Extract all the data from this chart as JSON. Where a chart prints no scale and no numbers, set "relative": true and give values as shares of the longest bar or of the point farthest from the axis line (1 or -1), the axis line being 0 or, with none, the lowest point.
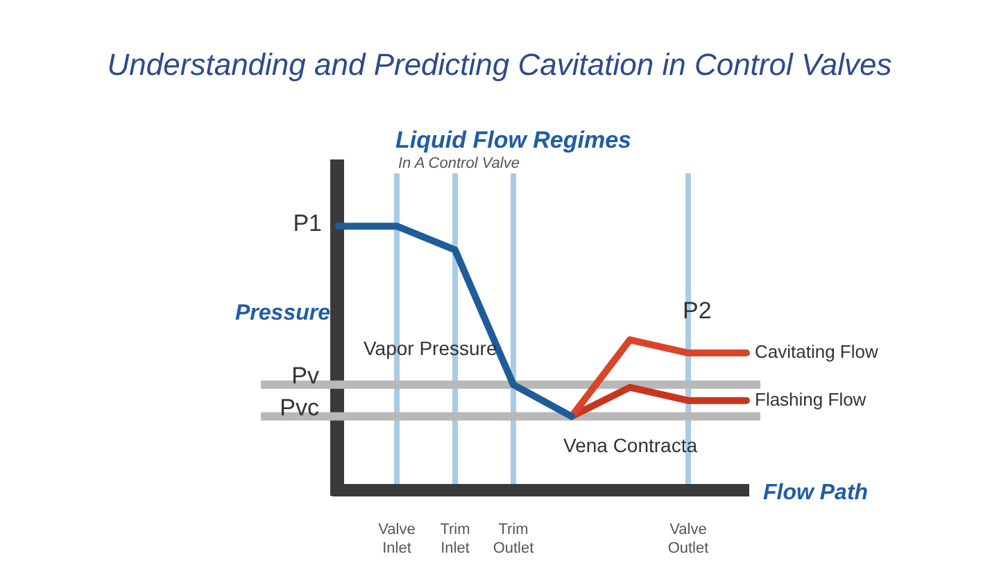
{
  "chart_data": {
    "type": "line",
    "relative": true,
    "title": "Understanding and Predicting Cavitation in Control Valves",
    "subtitle": "Liquid Flow Regimes",
    "xlabel": "Flow Path",
    "ylabel": "Pressure",
    "categories": [
      null,
      "Valve Inlet",
      "Trim Inlet",
      "Trim Outlet",
      null,
      null,
      "Valve Outlet",
      null
    ],
    "grid": "x",
    "marker": "none",
    "line_style": "solid",
    "series": [
      {
        "color": "#1f5c99",
        "values": [
          1,
          1,
          0.91,
          0.4,
          0.28,
          null,
          null,
          null
        ]
      },
      {
        "name": "Cavitating Flow",
        "color": "#d9452b",
        "values": [
          null,
          null,
          null,
          null,
          0.28,
          0.57,
          0.52,
          0.52
        ]
      },
      {
        "name": "Flashing Flow",
        "color": "#c7361f",
        "values": [
          null,
          null,
          null,
          null,
          0.28,
          0.39,
          0.34,
          0.34
        ]
      }
    ],
    "ref_lines": [
      {
        "axis": "y",
        "value": 0.4,
        "label": "Pv",
        "color": "#b8b8b8"
      },
      {
        "axis": "y",
        "value": 0.28,
        "label": "Pvc",
        "color": "#b8b8b8"
      }
    ],
    "annotations": [
      "In A Control Valve",
      "P2",
      "Vapor Pressure",
      "P1",
      {
        "text": "Vena Contracta",
        "y": 0.28
      }
    ]
  }
}
